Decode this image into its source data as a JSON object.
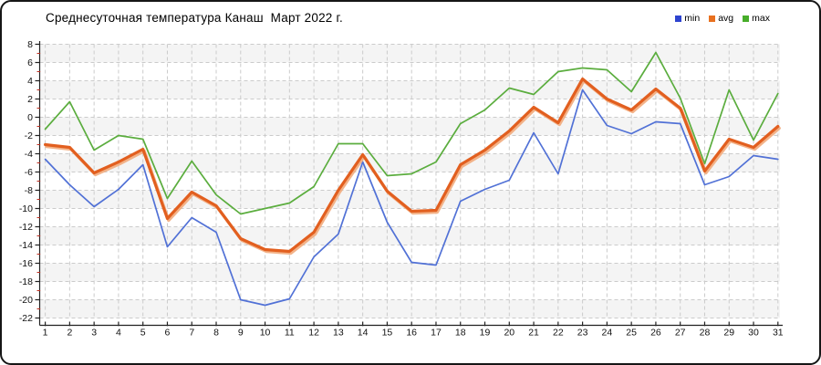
{
  "header": {
    "title": "Среднесуточная температура Канаш  Март 2022 г."
  },
  "legend": {
    "position": "top-right",
    "items": [
      {
        "label": "min",
        "color": "#2e44cf"
      },
      {
        "label": "avg",
        "color": "#e8701f"
      },
      {
        "label": "max",
        "color": "#47ad2a"
      }
    ]
  },
  "chart_data": {
    "type": "line",
    "title": "Среднесуточная температура Канаш  Март 2022 г.",
    "xlabel": "",
    "ylabel": "",
    "x": [
      1,
      2,
      3,
      4,
      5,
      6,
      7,
      8,
      9,
      10,
      11,
      12,
      13,
      14,
      15,
      16,
      17,
      18,
      19,
      20,
      21,
      22,
      23,
      24,
      25,
      26,
      27,
      28,
      29,
      30,
      31
    ],
    "xtick_labels": [
      "1",
      "2",
      "3",
      "4",
      "5",
      "6",
      "7",
      "8",
      "9",
      "10",
      "11",
      "12",
      "13",
      "14",
      "15",
      "16",
      "17",
      "18",
      "19",
      "20",
      "21",
      "22",
      "23",
      "24",
      "25",
      "26",
      "27",
      "28",
      "29",
      "30",
      "31"
    ],
    "series": [
      {
        "name": "min",
        "color": "#5171d6",
        "values": [
          -4.6,
          -7.4,
          -9.8,
          -7.9,
          -5.2,
          -14.2,
          -11.0,
          -12.6,
          -20.0,
          -20.6,
          -19.9,
          -15.3,
          -12.8,
          -4.9,
          -11.5,
          -15.9,
          -16.2,
          -9.2,
          -7.9,
          -6.9,
          -1.7,
          -6.2,
          3.0,
          -0.9,
          -1.8,
          -0.5,
          -0.7,
          -7.4,
          -6.5,
          -4.2,
          -4.6
        ]
      },
      {
        "name": "avg",
        "color": "#e25f1f",
        "halo_color": "#f2ab7c",
        "values": [
          -3.0,
          -3.3,
          -6.1,
          -4.9,
          -3.5,
          -11.1,
          -8.2,
          -9.7,
          -13.3,
          -14.5,
          -14.7,
          -12.6,
          -8.0,
          -4.1,
          -8.1,
          -10.3,
          -10.2,
          -5.2,
          -3.6,
          -1.5,
          1.1,
          -0.6,
          4.2,
          2.0,
          0.8,
          3.1,
          1.0,
          -5.9,
          -2.4,
          -3.3,
          -1.0
        ]
      },
      {
        "name": "max",
        "color": "#5bad3e",
        "values": [
          -1.3,
          1.7,
          -3.6,
          -2.0,
          -2.4,
          -8.9,
          -4.8,
          -8.5,
          -10.6,
          -10.0,
          -9.4,
          -7.6,
          -2.9,
          -2.9,
          -6.4,
          -6.2,
          -4.9,
          -0.7,
          0.8,
          3.2,
          2.5,
          5.0,
          5.4,
          5.2,
          2.8,
          7.1,
          2.1,
          -5.1,
          3.0,
          -2.5,
          2.6
        ]
      }
    ],
    "ylim": [
      -22,
      8
    ],
    "ytick_step": 2,
    "ytick_labels": [
      "8",
      "6",
      "4",
      "2",
      "0",
      "-2",
      "-4",
      "-6",
      "-8",
      "-10",
      "-12",
      "-14",
      "-16",
      "-18",
      "-20",
      "-22"
    ],
    "grid": true,
    "band_fill": "#f4f4f4",
    "minor_tick_color": "#c03022",
    "axis_color": "#222222",
    "gridline_color": "#cbcbcb",
    "legend_position": "top-right"
  }
}
